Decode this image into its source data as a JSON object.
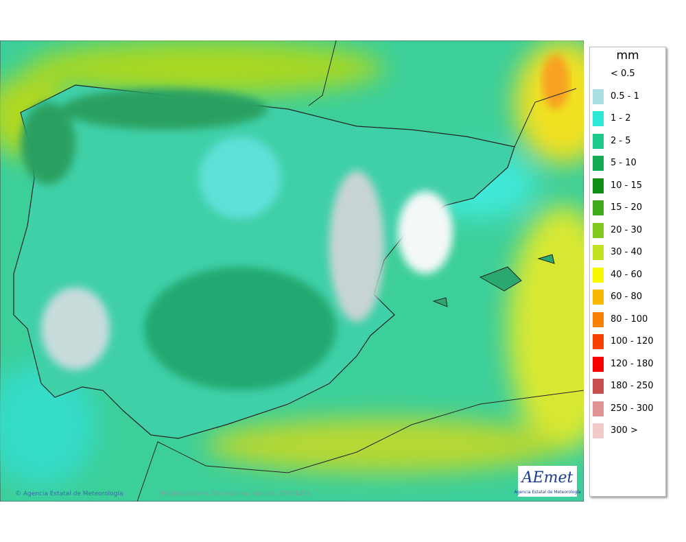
{
  "legend": {
    "title": "mm",
    "items": [
      {
        "label": "< 0.5",
        "color": null
      },
      {
        "label": "0.5 - 1",
        "color": "#a9dfe3"
      },
      {
        "label": "1 - 2",
        "color": "#2ee8d6"
      },
      {
        "label": "2 - 5",
        "color": "#1ec98c"
      },
      {
        "label": "5 - 10",
        "color": "#12ad52"
      },
      {
        "label": "10 - 15",
        "color": "#0e8e12"
      },
      {
        "label": "15 - 20",
        "color": "#3faa1c"
      },
      {
        "label": "20 - 30",
        "color": "#80c81e"
      },
      {
        "label": "30 - 40",
        "color": "#c2e21e"
      },
      {
        "label": "40 - 60",
        "color": "#f8f800"
      },
      {
        "label": "60 - 80",
        "color": "#f8b800"
      },
      {
        "label": "80 - 100",
        "color": "#f88000"
      },
      {
        "label": "100 - 120",
        "color": "#f84000"
      },
      {
        "label": "120 - 180",
        "color": "#f80000"
      },
      {
        "label": "180 - 250",
        "color": "#c84f4f"
      },
      {
        "label": "250 - 300",
        "color": "#e09494"
      },
      {
        "label": "300 >",
        "color": "#f2caca"
      }
    ]
  },
  "footer": {
    "copyright": "Agencia Estatal de Meteorología",
    "caption": "Precipitación en 24h máxima. Validez: 20241203"
  },
  "logo": {
    "name": "AEmet",
    "subtitle": "Agencia Estatal de Meteorología"
  }
}
